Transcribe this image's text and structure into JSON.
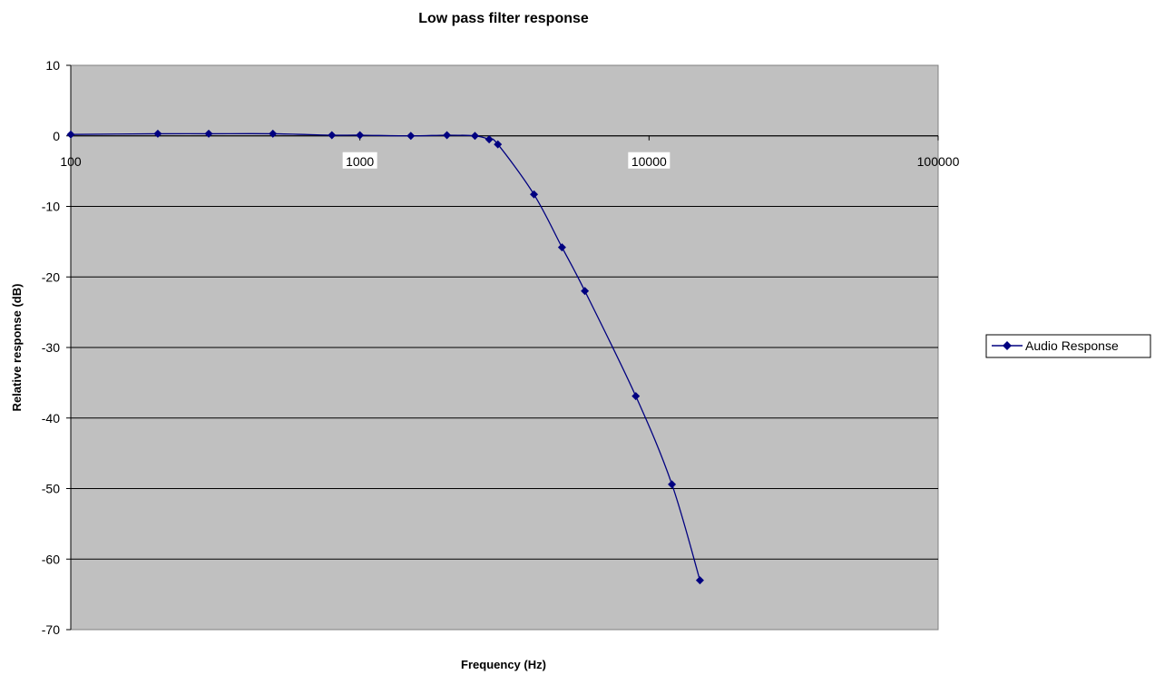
{
  "chart_data": {
    "type": "line",
    "title": "Low pass filter response",
    "xlabel": "Frequency (Hz)",
    "ylabel": "Relative response (dB)",
    "x_scale": "log",
    "xlim": [
      100,
      100000
    ],
    "ylim": [
      -70,
      10
    ],
    "x_ticks": [
      "100",
      "1000",
      "10000",
      "100000"
    ],
    "y_ticks": [
      "10",
      "0",
      "-10",
      "-20",
      "-30",
      "-40",
      "-50",
      "-60",
      "-70"
    ],
    "grid": "horizontal",
    "legend_position": "right",
    "plot_background": "#C0C0C0",
    "series": [
      {
        "name": "Audio Response",
        "color": "#000080",
        "marker": "diamond",
        "x": [
          100,
          200,
          300,
          500,
          800,
          1000,
          1500,
          2000,
          2500,
          2800,
          3000,
          4000,
          5000,
          6000,
          9000,
          12000,
          15000
        ],
        "y": [
          0.2,
          0.3,
          0.3,
          0.3,
          0.1,
          0.1,
          0.0,
          0.1,
          0.0,
          -0.5,
          -1.2,
          -8.3,
          -15.8,
          -22.0,
          -36.9,
          -49.4,
          -63.0
        ]
      }
    ]
  }
}
